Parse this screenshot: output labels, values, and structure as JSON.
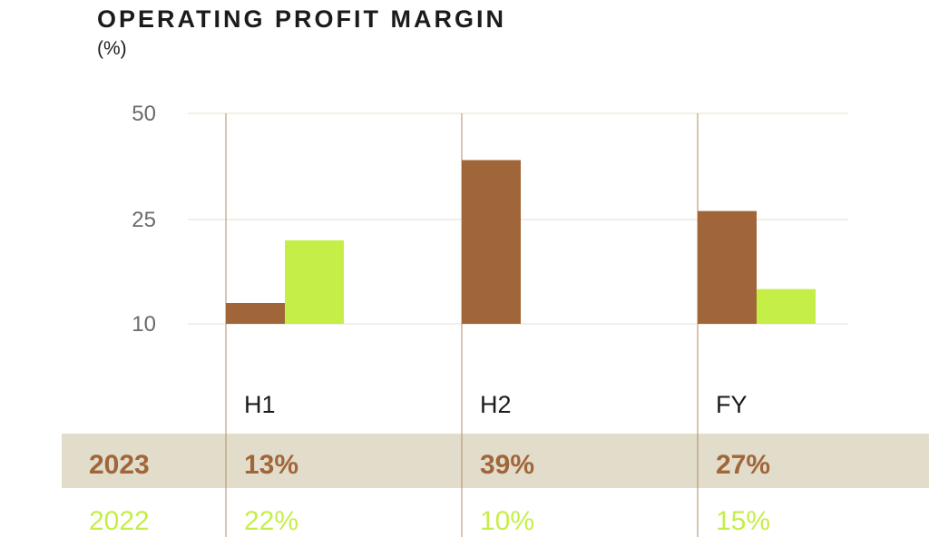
{
  "chart_data": {
    "type": "bar",
    "title": "OPERATING PROFIT MARGIN",
    "unit_label": "(%)",
    "categories": [
      "H1",
      "H2",
      "FY"
    ],
    "yticks": [
      "50",
      "25",
      "10"
    ],
    "ylim": [
      10,
      50
    ],
    "grid": true,
    "legend": "table-below",
    "series": [
      {
        "name": "2023",
        "values": [
          13,
          39,
          27
        ],
        "color": "#a0663a"
      },
      {
        "name": "2022",
        "values": [
          22,
          10,
          15
        ],
        "color": "#c5ef47"
      }
    ],
    "table": {
      "rows": [
        {
          "label": "2023",
          "cells": [
            "13%",
            "39%",
            "27%"
          ],
          "color": "#a0663a",
          "band": "#e2dcca"
        },
        {
          "label": "2022",
          "cells": [
            "22%",
            "10%",
            "15%"
          ],
          "color": "#c5ef47"
        }
      ]
    }
  }
}
